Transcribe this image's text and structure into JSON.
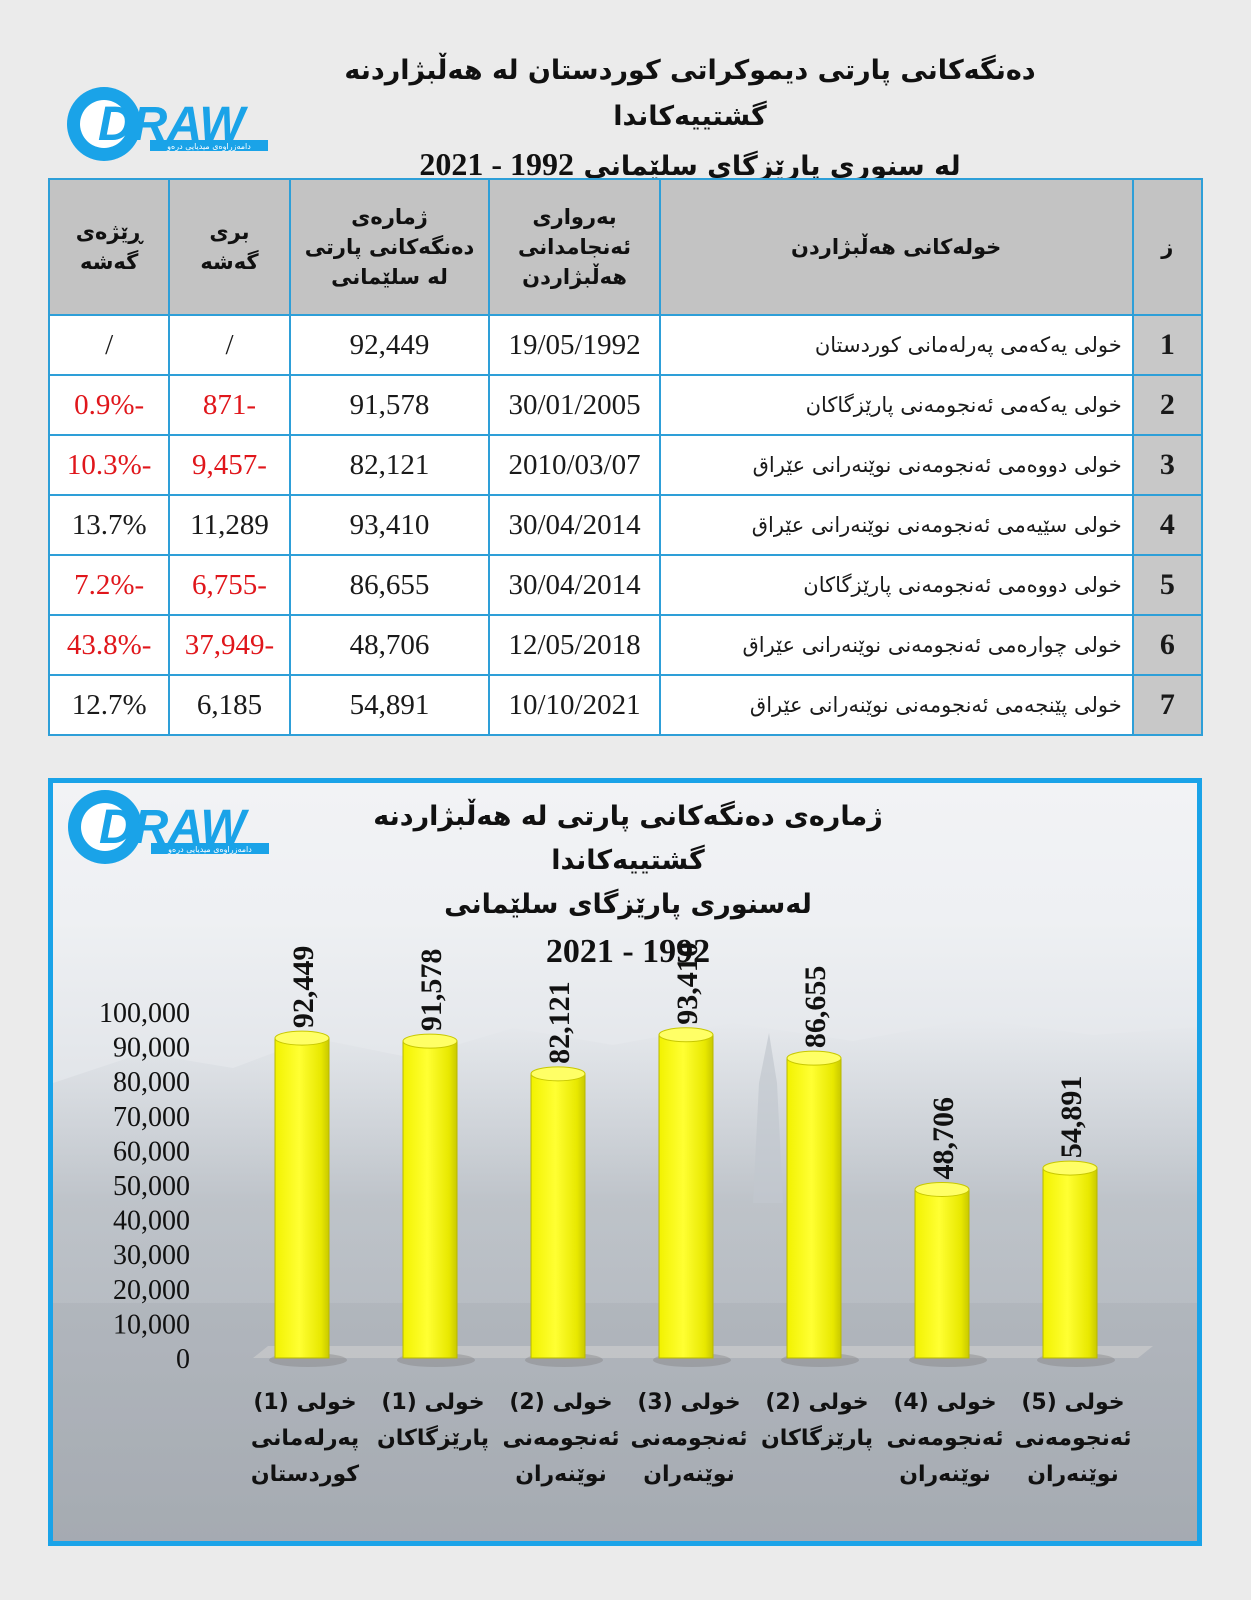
{
  "header": {
    "title_line1": "دەنگەکانی پارتی دیموکراتی کوردستان لە هەڵبژاردنە گشتییەکاندا",
    "title_line2_text": "لە سنوری پارێزگای سلێمانی",
    "title_line2_years": "1992 - 2021",
    "logo_text": "DRAW",
    "logo_tagline": "دامەزراوەی میدیایی درەو"
  },
  "colors": {
    "accent": "#1aa3e8",
    "bar": "#ffff00",
    "negative": "#e0161b",
    "header_bg": "#c3c3c3"
  },
  "table": {
    "headers": {
      "index": "ز",
      "round": "خولەکانی هەڵبژاردن",
      "date": [
        "بەرواری",
        "ئەنجامدانی",
        "هەڵبژاردن"
      ],
      "votes": [
        "ژمارەی",
        "دەنگەکانی پارتی",
        "لە سلێمانی"
      ],
      "growth": [
        "بری",
        "گەشە"
      ],
      "rate": [
        "ڕێژەی",
        "گەشە"
      ]
    },
    "rows": [
      {
        "index": "1",
        "round": "خولی یەکەمی پەرلەمانی کوردستان",
        "date": "19/05/1992",
        "votes": "92,449",
        "growth": "/",
        "rate": "/",
        "negative": false
      },
      {
        "index": "2",
        "round": "خولی یەکەمی ئەنجومەنی پارێزگاکان",
        "date": "30/01/2005",
        "votes": "91,578",
        "growth": "-871",
        "rate": "-0.9%",
        "negative": true
      },
      {
        "index": "3",
        "round": "خولی دووەمی ئەنجومەنی نوێنەرانی عێراق",
        "date": "2010/03/07",
        "votes": "82,121",
        "growth": "-9,457",
        "rate": "-10.3%",
        "negative": true
      },
      {
        "index": "4",
        "round": "خولی سێیەمی ئەنجومەنی نوێنەرانی عێراق",
        "date": "30/04/2014",
        "votes": "93,410",
        "growth": "11,289",
        "rate": "13.7%",
        "negative": false
      },
      {
        "index": "5",
        "round": "خولی دووەمی ئەنجومەنی پارێزگاکان",
        "date": "30/04/2014",
        "votes": "86,655",
        "growth": "-6,755",
        "rate": "-7.2%",
        "negative": true
      },
      {
        "index": "6",
        "round": "خولی چوارەمی ئەنجومەنی نوێنەرانی عێراق",
        "date": "12/05/2018",
        "votes": "48,706",
        "growth": "-37,949",
        "rate": "-43.8%",
        "negative": true
      },
      {
        "index": "7",
        "round": "خولی پێنجەمی ئەنجومەنی نوێنەرانی عێراق",
        "date": "10/10/2021",
        "votes": "54,891",
        "growth": "6,185",
        "rate": "12.7%",
        "negative": false
      }
    ]
  },
  "chart_data": {
    "type": "bar",
    "title_lines": [
      "ژمارەی دەنگەکانی پارتی لە هەڵبژاردنە گشتییەکاندا",
      "لەسنوری پارێزگای سلێمانی",
      "1992 - 2021"
    ],
    "categories": [
      [
        "خولی (1)",
        "پەرلەمانی",
        "کوردستان"
      ],
      [
        "خولی (1)",
        "پارێزگاکان"
      ],
      [
        "خولی (2)",
        "ئەنجومەنی",
        "نوێنەران"
      ],
      [
        "خولی (3)",
        "ئەنجومەنی",
        "نوێنەران"
      ],
      [
        "خولی (2)",
        "پارێزگاکان"
      ],
      [
        "خولی (4)",
        "ئەنجومەنی",
        "نوێنەران"
      ],
      [
        "خولی (5)",
        "ئەنجومەنی",
        "نوێنەران"
      ]
    ],
    "values": [
      92449,
      91578,
      82121,
      93410,
      86655,
      48706,
      54891
    ],
    "value_labels": [
      "92,449",
      "91,578",
      "82,121",
      "93,410",
      "86,655",
      "48,706",
      "54,891"
    ],
    "yticks": [
      "0",
      "10,000",
      "20,000",
      "30,000",
      "40,000",
      "50,000",
      "60,000",
      "70,000",
      "80,000",
      "90,000",
      "100,000"
    ],
    "ylim": [
      0,
      100000
    ],
    "grid": false,
    "legend": "none"
  }
}
